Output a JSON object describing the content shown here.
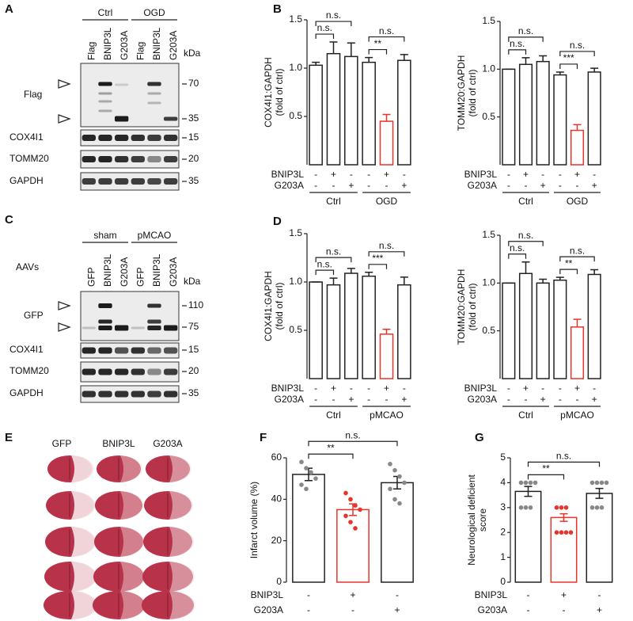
{
  "chart_data": [
    {
      "type": "bar",
      "panel": "B",
      "ylabel": [
        "COX4I1:GAPDH",
        "(fold of ctrl)"
      ],
      "values": [
        1.03,
        1.15,
        1.12,
        1.06,
        0.45,
        1.08
      ],
      "errors": [
        0.03,
        0.12,
        0.14,
        0.05,
        0.07,
        0.06
      ],
      "error_direction": "up",
      "colors": [
        "#222222",
        "#222222",
        "#222222",
        "#222222",
        "#e8352c",
        "#222222"
      ],
      "ylim": [
        0,
        1.5
      ],
      "yticks": [
        0.5,
        {
          "value": 1,
          "label": "1.0"
        },
        1.5
      ],
      "rows": [
        {
          "name": "BNIP3L",
          "signs": [
            "-",
            "+",
            "-",
            "-",
            "+",
            "-"
          ]
        },
        {
          "name": "G203A",
          "signs": [
            "-",
            "-",
            "+",
            "-",
            "-",
            "+"
          ]
        }
      ],
      "groups": [
        "Ctrl",
        "OGD"
      ],
      "comparisons": [
        {
          "bars": [
            0,
            1
          ],
          "label": "n.s."
        },
        {
          "bars": [
            0,
            2
          ],
          "label": "n.s."
        },
        {
          "bars": [
            3,
            4
          ],
          "label": "**"
        },
        {
          "bars": [
            3,
            5
          ],
          "label": "n.s."
        }
      ]
    },
    {
      "type": "bar",
      "ylabel": [
        "TOMM20:GAPDH",
        "(fold of ctrl)"
      ],
      "values": [
        1.0,
        1.05,
        1.08,
        0.94,
        0.36,
        0.97
      ],
      "errors": [
        0.0,
        0.07,
        0.06,
        0.03,
        0.06,
        0.04
      ],
      "error_direction": "up",
      "colors": [
        "#222222",
        "#222222",
        "#222222",
        "#222222",
        "#e8352c",
        "#222222"
      ],
      "ylim": [
        0,
        1.5
      ],
      "yticks": [
        0.5,
        {
          "value": 1,
          "label": "1.0"
        },
        1.5
      ],
      "rows": [
        {
          "name": "BNIP3L",
          "signs": [
            "-",
            "+",
            "-",
            "-",
            "+",
            "-"
          ]
        },
        {
          "name": "G203A",
          "signs": [
            "-",
            "-",
            "+",
            "-",
            "-",
            "+"
          ]
        }
      ],
      "groups": [
        "Ctrl",
        "OGD"
      ],
      "comparisons": [
        {
          "bars": [
            0,
            1
          ],
          "label": "n.s."
        },
        {
          "bars": [
            0,
            2
          ],
          "label": "n.s."
        },
        {
          "bars": [
            3,
            4
          ],
          "label": "***"
        },
        {
          "bars": [
            3,
            5
          ],
          "label": "n.s."
        }
      ]
    },
    {
      "type": "bar",
      "panel": "D",
      "ylabel": [
        "COX4I1:GAPDH",
        "(fold of ctrl)"
      ],
      "values": [
        1.0,
        0.97,
        1.09,
        1.06,
        0.46,
        0.97
      ],
      "errors": [
        0.0,
        0.07,
        0.05,
        0.04,
        0.05,
        0.08
      ],
      "error_direction": "up",
      "colors": [
        "#222222",
        "#222222",
        "#222222",
        "#222222",
        "#e8352c",
        "#222222"
      ],
      "ylim": [
        0,
        1.5
      ],
      "yticks": [
        0.5,
        {
          "value": 1,
          "label": "1.0"
        },
        1.5
      ],
      "rows": [
        {
          "name": "BNIP3L",
          "signs": [
            "-",
            "+",
            "-",
            "-",
            "+",
            "-"
          ]
        },
        {
          "name": "G203A",
          "signs": [
            "-",
            "-",
            "+",
            "-",
            "-",
            "+"
          ]
        }
      ],
      "groups": [
        "Ctrl",
        "pMCAO"
      ],
      "comparisons": [
        {
          "bars": [
            0,
            1
          ],
          "label": "n.s."
        },
        {
          "bars": [
            0,
            2
          ],
          "label": "n.s."
        },
        {
          "bars": [
            3,
            4
          ],
          "label": "***"
        },
        {
          "bars": [
            3,
            5
          ],
          "label": "n.s."
        }
      ]
    },
    {
      "type": "bar",
      "ylabel": [
        "TOMM20:GAPDH",
        "(fold of ctrl)"
      ],
      "values": [
        1.0,
        1.1,
        1.0,
        1.03,
        0.54,
        1.09
      ],
      "errors": [
        0.0,
        0.12,
        0.04,
        0.03,
        0.08,
        0.05
      ],
      "error_direction": "up",
      "colors": [
        "#222222",
        "#222222",
        "#222222",
        "#222222",
        "#e8352c",
        "#222222"
      ],
      "ylim": [
        0,
        1.5
      ],
      "yticks": [
        0.5,
        {
          "value": 1,
          "label": "1.0"
        },
        1.5
      ],
      "rows": [
        {
          "name": "BNIP3L",
          "signs": [
            "-",
            "+",
            "-",
            "-",
            "+",
            "-"
          ]
        },
        {
          "name": "G203A",
          "signs": [
            "-",
            "-",
            "+",
            "-",
            "-",
            "+"
          ]
        }
      ],
      "groups": [
        "Ctrl",
        "pMCAO"
      ],
      "comparisons": [
        {
          "bars": [
            0,
            1
          ],
          "label": "n.s."
        },
        {
          "bars": [
            0,
            2
          ],
          "label": "n.s."
        },
        {
          "bars": [
            3,
            4
          ],
          "label": "**"
        },
        {
          "bars": [
            3,
            5
          ],
          "label": "n.s."
        }
      ]
    },
    {
      "type": "bar",
      "panel": "F",
      "ylabel": [
        "Infarct volume (%)"
      ],
      "values": [
        52,
        35,
        48
      ],
      "errors": [
        3,
        2.8,
        3
      ],
      "error_direction": "both",
      "colors": [
        "#222222",
        "#e8352c",
        "#222222"
      ],
      "point_colors": [
        "#888888",
        "#e8352c",
        "#888888"
      ],
      "points": [
        [
          58,
          55,
          53,
          50,
          47,
          45
        ],
        [
          43,
          40,
          37,
          35,
          32,
          29,
          26
        ],
        [
          57,
          54,
          51,
          48,
          45,
          40,
          38
        ]
      ],
      "ylim": [
        0,
        60
      ],
      "yticks": [
        0,
        20,
        40,
        60
      ],
      "rows": [
        {
          "name": "BNIP3L",
          "signs": [
            "-",
            "+",
            "-"
          ]
        },
        {
          "name": "G203A",
          "signs": [
            "-",
            "-",
            "+"
          ]
        }
      ],
      "comparisons": [
        {
          "bars": [
            0,
            1
          ],
          "label": "**"
        },
        {
          "bars": [
            0,
            2
          ],
          "label": "n.s."
        }
      ]
    },
    {
      "type": "bar",
      "panel": "G",
      "ylabel": [
        "Neurological deficient",
        "score"
      ],
      "values": [
        3.65,
        2.6,
        3.57
      ],
      "errors": [
        0.2,
        0.15,
        0.2
      ],
      "error_direction": "both",
      "colors": [
        "#222222",
        "#e8352c",
        "#222222"
      ],
      "point_colors": [
        "#888888",
        "#e8352c",
        "#888888"
      ],
      "points": [
        [
          4,
          4,
          4,
          4,
          3,
          3,
          3
        ],
        [
          3,
          3,
          3,
          2,
          2,
          2,
          2
        ],
        [
          4,
          4,
          4,
          4,
          3,
          3,
          3
        ]
      ],
      "ylim": [
        0,
        5
      ],
      "yticks": [
        0,
        1,
        2,
        3,
        4,
        5
      ],
      "rows": [
        {
          "name": "BNIP3L",
          "signs": [
            "-",
            "+",
            "-"
          ]
        },
        {
          "name": "G203A",
          "signs": [
            "-",
            "-",
            "+"
          ]
        }
      ],
      "comparisons": [
        {
          "bars": [
            0,
            1
          ],
          "label": "**"
        },
        {
          "bars": [
            0,
            2
          ],
          "label": "n.s."
        }
      ]
    }
  ],
  "blots": [
    {
      "panel": "A",
      "groups": [
        "Ctrl",
        "OGD"
      ],
      "lanes": [
        "Flag",
        "BNIP3L",
        "G203A",
        "Flag",
        "BNIP3L",
        "G203A"
      ],
      "unit": "kDa",
      "rows": [
        {
          "name": "Flag",
          "markers": [
            70,
            35
          ]
        },
        {
          "name": "COX4I1",
          "markers": [
            15
          ]
        },
        {
          "name": "TOMM20",
          "markers": [
            20
          ]
        },
        {
          "name": "GAPDH",
          "markers": [
            35
          ]
        }
      ]
    },
    {
      "panel": "C",
      "side_label": "AAVs",
      "groups": [
        "sham",
        "pMCAO"
      ],
      "lanes": [
        "GFP",
        "BNIP3L",
        "G203A",
        "GFP",
        "BNIP3L",
        "G203A"
      ],
      "unit": "kDa",
      "rows": [
        {
          "name": "GFP",
          "markers": [
            110,
            75
          ]
        },
        {
          "name": "COX4I1",
          "markers": [
            15
          ]
        },
        {
          "name": "TOMM20",
          "markers": [
            20
          ]
        },
        {
          "name": "GAPDH",
          "markers": [
            35
          ]
        }
      ]
    }
  ],
  "brain_images": {
    "panel": "E",
    "columns": [
      "GFP",
      "BNIP3L",
      "G203A"
    ]
  }
}
